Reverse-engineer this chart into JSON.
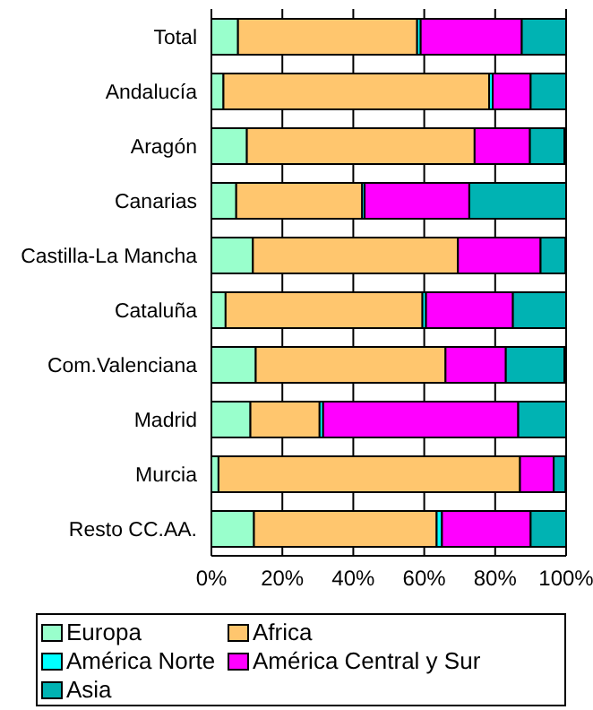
{
  "chart_data": {
    "type": "bar",
    "orientation": "horizontal",
    "stacked": true,
    "categories": [
      "Total",
      "Andalucía",
      "Aragón",
      "Canarias",
      "Castilla-La Mancha",
      "Cataluña",
      "Com.Valenciana",
      "Madrid",
      "Murcia",
      "Resto CC.AA."
    ],
    "series": [
      {
        "name": "Europa",
        "color": "#99ffcc",
        "values": [
          7.5,
          3.4,
          10,
          7,
          11.7,
          4,
          12.5,
          11,
          2,
          12
        ]
      },
      {
        "name": "Africa",
        "color": "#ffc66e",
        "values": [
          50.5,
          74.9,
          64.2,
          35.5,
          57.8,
          55.5,
          53.5,
          19.5,
          85,
          51.5
        ]
      },
      {
        "name": "América Norte",
        "color": "#00ffff",
        "values": [
          1,
          1,
          null,
          0.7,
          null,
          1,
          null,
          1,
          null,
          1.5
        ]
      },
      {
        "name": "América Central y Sur",
        "color": "#ff00ff",
        "values": [
          28.5,
          10.7,
          15.6,
          29.5,
          23.3,
          24.5,
          17,
          55,
          9.5,
          25
        ]
      },
      {
        "name": "Asia",
        "color": "#00b3b3",
        "values": [
          12.5,
          10,
          9.7,
          27.3,
          7,
          15,
          16.5,
          13.5,
          3.3,
          10
        ]
      }
    ],
    "xlim": [
      0,
      100
    ],
    "xticks": [
      {
        "value": 0,
        "label": "0%"
      },
      {
        "value": 20,
        "label": "20%"
      },
      {
        "value": 40,
        "label": "40%"
      },
      {
        "value": 60,
        "label": "60%"
      },
      {
        "value": 80,
        "label": "80%"
      },
      {
        "value": 100,
        "label": "100%"
      }
    ],
    "grid": "x",
    "legend": "bottom"
  }
}
